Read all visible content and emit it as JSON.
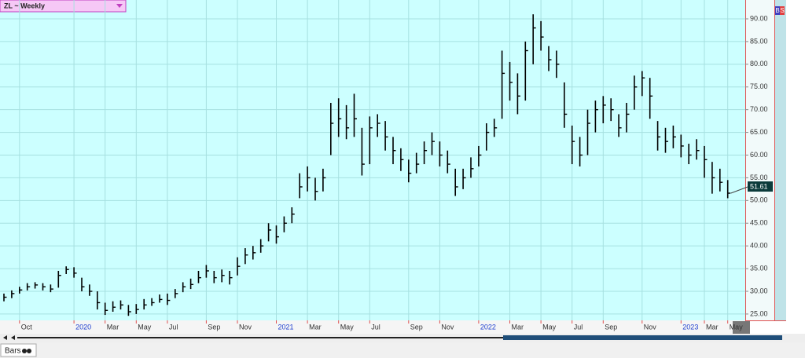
{
  "chart_data": {
    "type": "ohlc",
    "title": "ZL ~ Weekly",
    "color": "#000000",
    "grid": true,
    "categories": [
      null,
      null,
      "Oct",
      null,
      null,
      null,
      null,
      null,
      null,
      "2020",
      null,
      null,
      null,
      "Mar",
      null,
      null,
      null,
      "May",
      null,
      null,
      null,
      "Jul",
      null,
      null,
      null,
      null,
      "Sep",
      null,
      null,
      null,
      "Nov",
      null,
      null,
      null,
      null,
      "2021",
      null,
      null,
      null,
      "Mar",
      null,
      null,
      null,
      "May",
      null,
      null,
      null,
      "Jul",
      null,
      null,
      null,
      null,
      "Sep",
      null,
      null,
      null,
      "Nov",
      null,
      null,
      null,
      null,
      "2022",
      null,
      null,
      null,
      "Mar",
      null,
      null,
      null,
      "May",
      null,
      null,
      null,
      "Jul",
      null,
      null,
      null,
      "Sep",
      null,
      null,
      null,
      null,
      "Nov",
      null,
      null,
      null,
      null,
      "2023",
      null,
      null,
      "Mar",
      null,
      null,
      "May"
    ],
    "high": [
      29.5,
      30.2,
      31.0,
      31.8,
      32.0,
      31.8,
      31.5,
      34.5,
      35.5,
      35.3,
      33.0,
      31.5,
      30.0,
      27.5,
      27.8,
      28.0,
      27.0,
      27.2,
      28.3,
      28.5,
      29.3,
      29.5,
      30.5,
      32.0,
      32.8,
      34.5,
      35.8,
      34.5,
      34.8,
      34.5,
      37.5,
      39.5,
      40.0,
      41.5,
      45.0,
      44.5,
      46.5,
      48.5,
      56.0,
      57.5,
      55.0,
      57.0,
      71.5,
      72.5,
      71.0,
      73.5,
      66.0,
      68.5,
      69.0,
      67.5,
      64.0,
      61.5,
      59.0,
      60.5,
      63.0,
      65.0,
      63.0,
      61.0,
      57.0,
      57.0,
      59.5,
      62.0,
      67.0,
      68.0,
      83.0,
      80.5,
      78.0,
      85.0,
      91.0,
      89.5,
      84.0,
      83.0,
      76.0,
      66.5,
      64.0,
      70.0,
      72.0,
      73.0,
      72.5,
      69.0,
      71.5,
      77.5,
      78.5,
      77.0,
      67.5,
      66.0,
      66.5,
      64.5,
      62.5,
      63.5,
      62.0,
      58.5,
      57.0,
      54.5
    ],
    "low": [
      27.8,
      28.5,
      29.5,
      30.2,
      30.6,
      30.2,
      29.8,
      30.8,
      33.8,
      33.0,
      30.0,
      29.0,
      26.0,
      24.8,
      25.5,
      26.0,
      24.6,
      25.0,
      26.0,
      26.8,
      27.5,
      27.0,
      28.5,
      29.8,
      30.5,
      31.8,
      33.0,
      31.8,
      32.0,
      31.5,
      33.5,
      36.0,
      37.0,
      38.5,
      41.0,
      40.5,
      43.0,
      45.0,
      50.5,
      52.0,
      50.0,
      52.0,
      60.0,
      64.0,
      63.5,
      64.0,
      55.5,
      58.0,
      64.0,
      61.0,
      58.0,
      56.5,
      54.0,
      56.0,
      58.0,
      60.0,
      57.5,
      56.0,
      51.0,
      52.5,
      55.0,
      57.5,
      61.0,
      64.0,
      68.0,
      72.0,
      69.0,
      72.0,
      80.0,
      83.0,
      78.5,
      77.0,
      66.0,
      58.0,
      57.5,
      60.0,
      65.0,
      67.0,
      67.5,
      64.0,
      65.0,
      70.0,
      73.0,
      68.0,
      61.0,
      60.5,
      61.5,
      59.5,
      58.0,
      59.0,
      55.0,
      51.5,
      52.0,
      50.5
    ],
    "close": [
      28.7,
      29.5,
      30.3,
      31.0,
      31.4,
      31.0,
      30.5,
      33.5,
      34.8,
      34.0,
      31.0,
      30.0,
      27.5,
      25.8,
      26.5,
      27.0,
      25.5,
      26.0,
      27.0,
      27.5,
      28.2,
      28.0,
      29.5,
      31.0,
      31.5,
      33.0,
      34.5,
      33.0,
      33.5,
      33.0,
      35.5,
      38.0,
      38.5,
      40.0,
      43.5,
      42.0,
      45.0,
      47.0,
      53.0,
      55.0,
      52.0,
      55.0,
      67.0,
      68.0,
      66.0,
      68.0,
      58.0,
      66.0,
      67.0,
      64.0,
      61.0,
      59.0,
      56.0,
      58.0,
      61.0,
      63.0,
      60.0,
      58.0,
      53.0,
      55.0,
      57.0,
      60.0,
      65.0,
      66.0,
      78.0,
      76.0,
      73.0,
      83.0,
      88.0,
      86.0,
      81.0,
      80.0,
      69.0,
      63.0,
      60.0,
      67.0,
      70.0,
      71.0,
      70.0,
      66.0,
      69.0,
      75.0,
      77.0,
      73.0,
      64.0,
      63.0,
      64.0,
      62.0,
      60.0,
      61.0,
      59.0,
      55.0,
      54.0,
      51.61
    ],
    "ylim": [
      23.6,
      94.15
    ],
    "yticks": [
      {
        "value": 25,
        "label": "25.00"
      },
      {
        "value": 30,
        "label": "30.00"
      },
      {
        "value": 35,
        "label": "35.00"
      },
      {
        "value": 40,
        "label": "40.00"
      },
      {
        "value": 45,
        "label": "45.00"
      },
      {
        "value": 50,
        "label": "50.00"
      },
      {
        "value": 55,
        "label": "55.00"
      },
      {
        "value": 60,
        "label": "60.00"
      },
      {
        "value": 65,
        "label": "65.00"
      },
      {
        "value": 70,
        "label": "70.00"
      },
      {
        "value": 75,
        "label": "75.00"
      },
      {
        "value": 80,
        "label": "80.00"
      },
      {
        "value": 85,
        "label": "85.00"
      },
      {
        "value": 90,
        "label": "90.00"
      }
    ]
  },
  "ui": {
    "tab": "Bars",
    "buttons": [
      "B",
      "S"
    ]
  }
}
